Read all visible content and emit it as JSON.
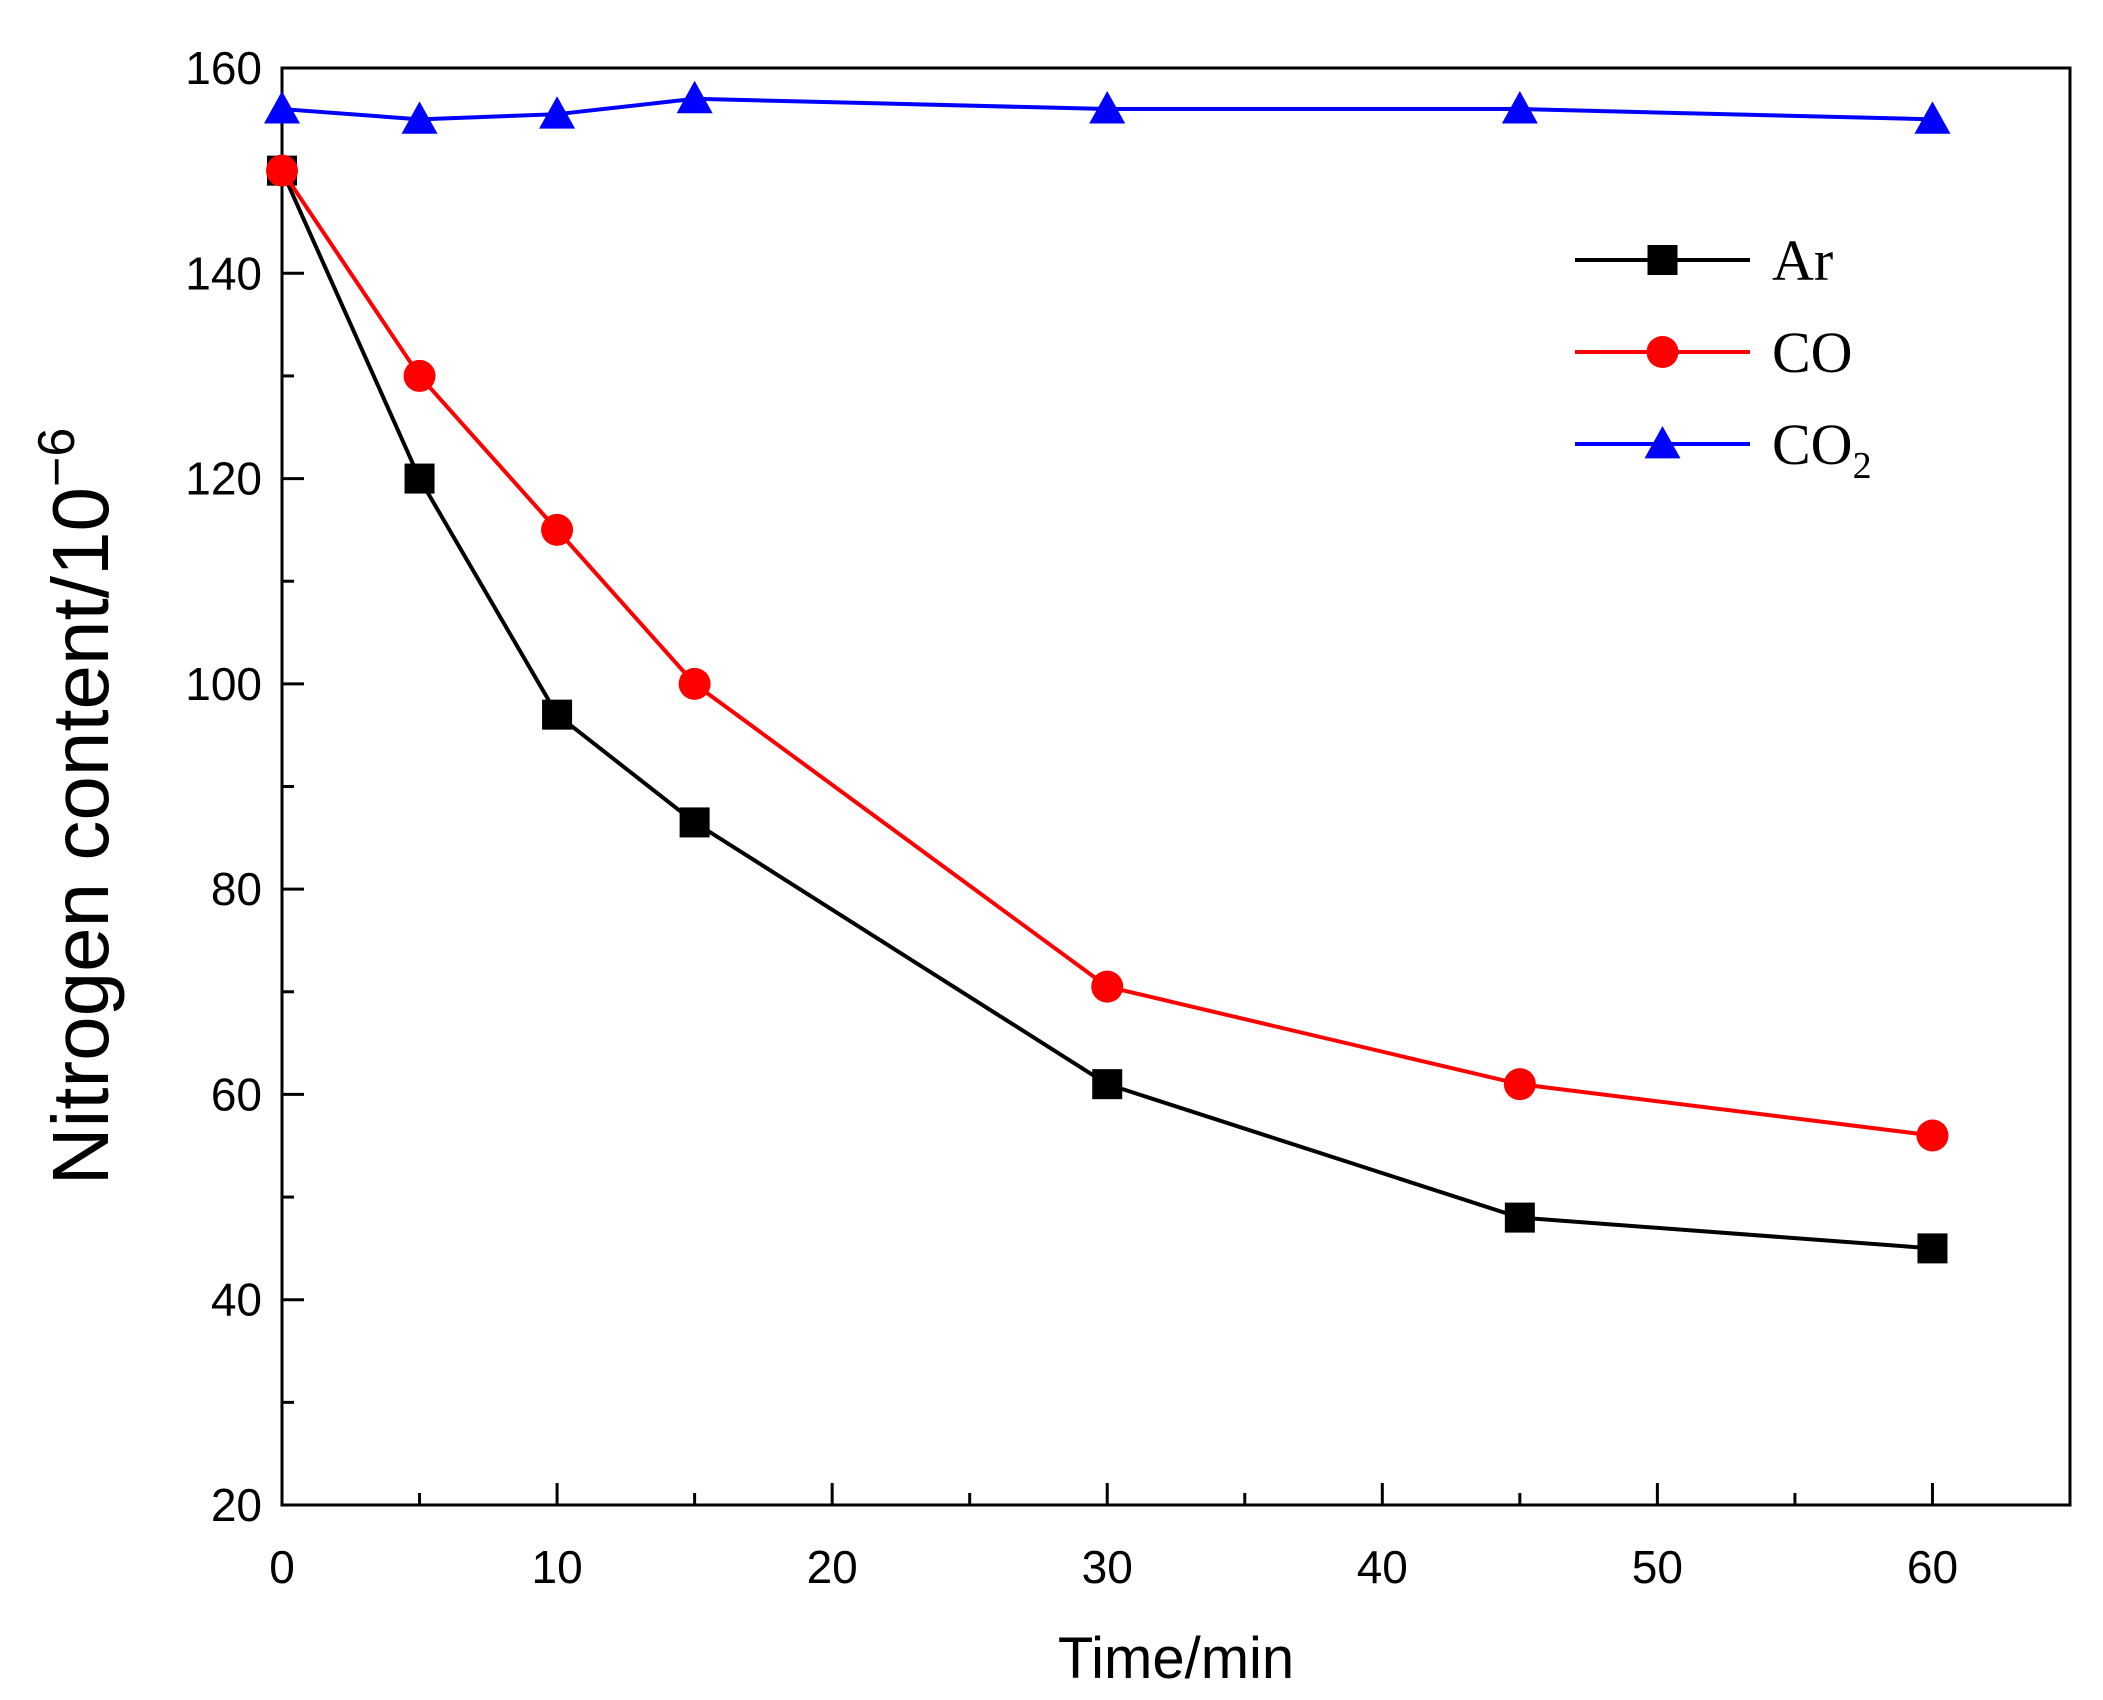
{
  "chart_data": {
    "type": "line",
    "title": "",
    "xlabel": "Time/min",
    "ylabel": "Nitrogen content/10",
    "ylabel_exponent": "−6",
    "xlim": [
      0,
      65
    ],
    "ylim": [
      20,
      160
    ],
    "x_ticks": [
      0,
      10,
      20,
      30,
      40,
      50,
      60
    ],
    "y_ticks": [
      20,
      40,
      60,
      80,
      100,
      120,
      140,
      160
    ],
    "x": [
      0,
      5,
      10,
      15,
      30,
      45,
      60
    ],
    "legend_position": "top-right",
    "series": [
      {
        "name": "Ar",
        "name_sub": "",
        "marker": "square",
        "color": "#000000",
        "values": [
          150,
          120,
          97,
          86.5,
          61,
          48,
          45
        ]
      },
      {
        "name": "CO",
        "name_sub": "",
        "marker": "circle",
        "color": "#ff0000",
        "values": [
          150,
          130,
          115,
          100,
          70.5,
          61,
          56
        ]
      },
      {
        "name": "CO",
        "name_sub": "2",
        "marker": "triangle",
        "color": "#0000ff",
        "values": [
          156,
          155,
          155.5,
          157,
          156,
          156,
          155
        ]
      }
    ]
  }
}
